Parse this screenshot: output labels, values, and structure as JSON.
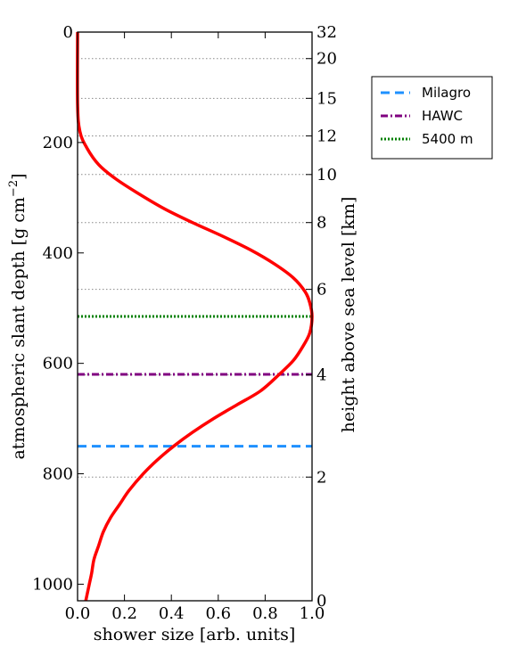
{
  "chart_data": {
    "type": "line",
    "xlabel": "shower size [arb. units]",
    "ylabel_left": "atmospheric slant depth [g cm",
    "ylabel_left_exponent": "−2",
    "ylabel_left_close": "]",
    "ylabel_right": "height above sea level [km]",
    "xlim": [
      0.0,
      1.0
    ],
    "ylim": [
      1030,
      0
    ],
    "x_ticks": [
      0.0,
      0.2,
      0.4,
      0.6,
      0.8,
      1.0
    ],
    "x_tick_labels": [
      "0.0",
      "0.2",
      "0.4",
      "0.6",
      "0.8",
      "1.0"
    ],
    "y_left_ticks": [
      0,
      200,
      400,
      600,
      800,
      1000
    ],
    "y_left_tick_labels": [
      "0",
      "200",
      "400",
      "600",
      "800",
      "1000"
    ],
    "y_right_ticks": [
      {
        "depth": 0,
        "label": "32"
      },
      {
        "depth": 48,
        "label": "20"
      },
      {
        "depth": 120,
        "label": "15"
      },
      {
        "depth": 188,
        "label": "12"
      },
      {
        "depth": 258,
        "label": "10"
      },
      {
        "depth": 345,
        "label": "8"
      },
      {
        "depth": 466,
        "label": "6"
      },
      {
        "depth": 621,
        "label": "4"
      },
      {
        "depth": 806,
        "label": "2"
      },
      {
        "depth": 1030,
        "label": "0"
      }
    ],
    "grid": "horizontal dotted lines at right-axis height ticks",
    "series": [
      {
        "name": "",
        "color": "#ff0000",
        "style": "solid",
        "x": [
          0.0,
          0.0,
          0.01,
          0.04,
          0.09,
          0.16,
          0.25,
          0.37,
          0.49,
          0.62,
          0.74,
          0.84,
          0.92,
          0.97,
          0.99,
          1.0,
          0.99,
          0.96,
          0.92,
          0.86,
          0.78,
          0.68,
          0.58,
          0.49,
          0.41,
          0.34,
          0.28,
          0.22,
          0.18,
          0.14,
          0.11,
          0.09,
          0.07,
          0.06,
          0.05,
          0.04,
          0.035
        ],
        "y": [
          0,
          130,
          180,
          210,
          240,
          265,
          290,
          320,
          345,
          370,
          395,
          420,
          445,
          470,
          490,
          515,
          545,
          570,
          595,
          620,
          650,
          675,
          700,
          725,
          750,
          775,
          800,
          830,
          855,
          880,
          905,
          930,
          955,
          980,
          1000,
          1020,
          1030
        ]
      },
      {
        "name": "Milagro",
        "color": "#1e90ff",
        "style": "dashed",
        "depth": 750
      },
      {
        "name": "HAWC",
        "color": "#800080",
        "style": "dashdot",
        "depth": 620
      },
      {
        "name": "5400 m",
        "color": "#008000",
        "style": "dotted",
        "depth": 515
      }
    ],
    "legend": {
      "placement": "right of plot, top",
      "entries": [
        "Milagro",
        "HAWC",
        "5400 m"
      ]
    }
  }
}
